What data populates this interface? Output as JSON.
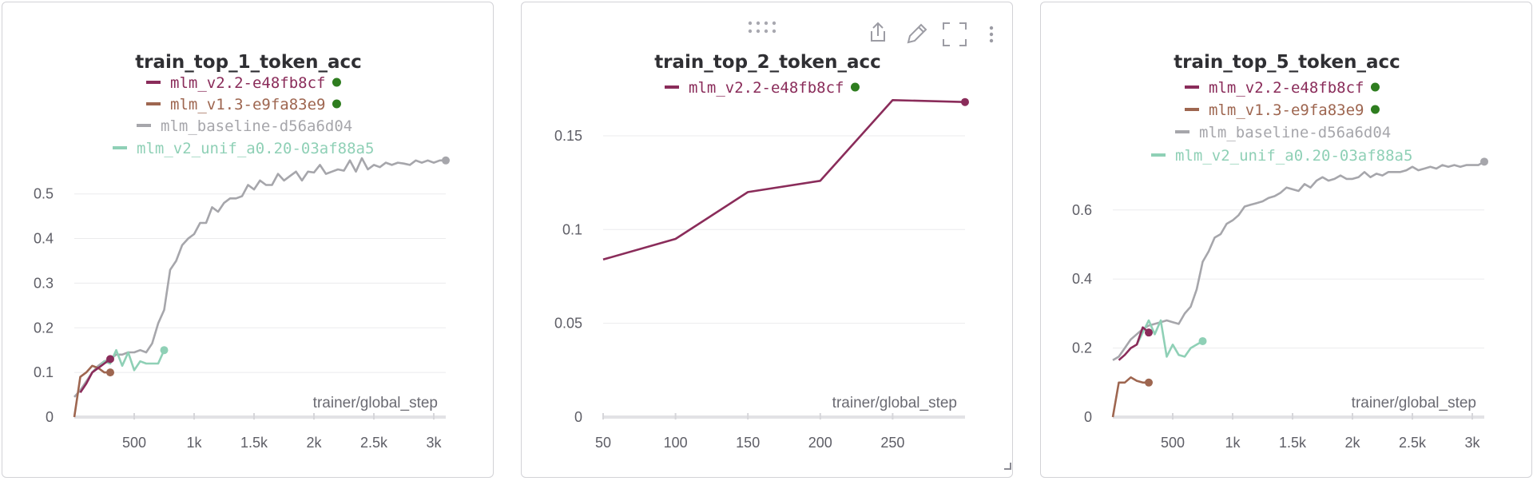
{
  "status_dot_color": "#2e7d1f",
  "toolbar": {
    "icons": [
      "drag-handle-icon",
      "share-icon",
      "edit-icon",
      "fullscreen-icon",
      "more-vert-icon"
    ]
  },
  "chart_data": [
    {
      "type": "line",
      "title": "train_top_1_token_acc",
      "xlabel": "trainer/global_step",
      "ylabel": "",
      "xlim": [
        0,
        3100
      ],
      "ylim": [
        0,
        0.58
      ],
      "x_ticks": [
        {
          "v": 500,
          "label": "500"
        },
        {
          "v": 1000,
          "label": "1k"
        },
        {
          "v": 1500,
          "label": "1.5k"
        },
        {
          "v": 2000,
          "label": "2k"
        },
        {
          "v": 2500,
          "label": "2.5k"
        },
        {
          "v": 3000,
          "label": "3k"
        }
      ],
      "y_ticks": [
        {
          "v": 0,
          "label": "0"
        },
        {
          "v": 0.1,
          "label": "0.1"
        },
        {
          "v": 0.2,
          "label": "0.2"
        },
        {
          "v": 0.3,
          "label": "0.3"
        },
        {
          "v": 0.4,
          "label": "0.4"
        },
        {
          "v": 0.5,
          "label": "0.5"
        }
      ],
      "grid": true,
      "series": [
        {
          "name": "mlm_baseline-d56a6d04",
          "color": "#a6a6ab",
          "status_dot": false,
          "x": [
            0,
            50,
            100,
            150,
            200,
            250,
            300,
            350,
            400,
            450,
            500,
            550,
            600,
            650,
            700,
            750,
            800,
            850,
            900,
            950,
            1000,
            1050,
            1100,
            1150,
            1200,
            1250,
            1300,
            1350,
            1400,
            1450,
            1500,
            1550,
            1600,
            1650,
            1700,
            1750,
            1800,
            1850,
            1900,
            1950,
            2000,
            2050,
            2100,
            2150,
            2200,
            2250,
            2300,
            2350,
            2400,
            2450,
            2500,
            2550,
            2600,
            2650,
            2700,
            2750,
            2800,
            2850,
            2900,
            2950,
            3000,
            3050,
            3100
          ],
          "y": [
            0.045,
            0.06,
            0.08,
            0.1,
            0.115,
            0.125,
            0.13,
            0.14,
            0.14,
            0.145,
            0.145,
            0.15,
            0.145,
            0.165,
            0.21,
            0.24,
            0.33,
            0.35,
            0.385,
            0.4,
            0.41,
            0.435,
            0.435,
            0.47,
            0.46,
            0.48,
            0.49,
            0.49,
            0.495,
            0.52,
            0.51,
            0.53,
            0.52,
            0.52,
            0.545,
            0.53,
            0.54,
            0.55,
            0.53,
            0.55,
            0.548,
            0.565,
            0.545,
            0.55,
            0.555,
            0.552,
            0.575,
            0.55,
            0.58,
            0.555,
            0.565,
            0.56,
            0.57,
            0.565,
            0.57,
            0.568,
            0.565,
            0.575,
            0.57,
            0.575,
            0.57,
            0.575,
            0.575
          ],
          "end_marker": true
        },
        {
          "name": "mlm_v2_unif_a0.20-03af88a5",
          "color": "#8fd0b6",
          "status_dot": false,
          "x": [
            200,
            250,
            300,
            350,
            400,
            450,
            500,
            550,
            600,
            650,
            700,
            750
          ],
          "y": [
            0.11,
            0.125,
            0.12,
            0.15,
            0.115,
            0.145,
            0.105,
            0.125,
            0.12,
            0.12,
            0.12,
            0.15
          ],
          "end_marker": true
        },
        {
          "name": "mlm_v1.3-e9fa83e9",
          "color": "#9e6650",
          "status_dot": true,
          "x": [
            0,
            50,
            100,
            150,
            200,
            250,
            300
          ],
          "y": [
            0.0,
            0.09,
            0.1,
            0.115,
            0.11,
            0.1,
            0.1
          ],
          "end_marker": true
        },
        {
          "name": "mlm_v2.2-e48fb8cf",
          "color": "#8a2c5a",
          "status_dot": true,
          "x": [
            50,
            100,
            150,
            200,
            250,
            300
          ],
          "y": [
            0.055,
            0.075,
            0.1,
            0.11,
            0.12,
            0.13
          ],
          "end_marker": true
        }
      ]
    },
    {
      "type": "line",
      "title": "train_top_2_token_acc",
      "xlabel": "trainer/global_step",
      "ylabel": "",
      "xlim": [
        50,
        300
      ],
      "ylim": [
        0,
        0.17
      ],
      "x_ticks": [
        {
          "v": 50,
          "label": "50"
        },
        {
          "v": 100,
          "label": "100"
        },
        {
          "v": 150,
          "label": "150"
        },
        {
          "v": 200,
          "label": "200"
        },
        {
          "v": 250,
          "label": "250"
        }
      ],
      "y_ticks": [
        {
          "v": 0,
          "label": "0"
        },
        {
          "v": 0.05,
          "label": "0.05"
        },
        {
          "v": 0.1,
          "label": "0.1"
        },
        {
          "v": 0.15,
          "label": "0.15"
        }
      ],
      "grid": true,
      "series": [
        {
          "name": "mlm_v2.2-e48fb8cf",
          "color": "#8a2c5a",
          "status_dot": true,
          "x": [
            50,
            100,
            150,
            200,
            250,
            300
          ],
          "y": [
            0.084,
            0.095,
            0.12,
            0.126,
            0.169,
            0.168
          ],
          "end_marker": true
        }
      ]
    },
    {
      "type": "line",
      "title": "train_top_5_token_acc",
      "xlabel": "trainer/global_step",
      "ylabel": "",
      "xlim": [
        0,
        3100
      ],
      "ylim": [
        0,
        0.75
      ],
      "x_ticks": [
        {
          "v": 500,
          "label": "500"
        },
        {
          "v": 1000,
          "label": "1k"
        },
        {
          "v": 1500,
          "label": "1.5k"
        },
        {
          "v": 2000,
          "label": "2k"
        },
        {
          "v": 2500,
          "label": "2.5k"
        },
        {
          "v": 3000,
          "label": "3k"
        }
      ],
      "y_ticks": [
        {
          "v": 0,
          "label": "0"
        },
        {
          "v": 0.2,
          "label": "0.2"
        },
        {
          "v": 0.4,
          "label": "0.4"
        },
        {
          "v": 0.6,
          "label": "0.6"
        }
      ],
      "grid": true,
      "series": [
        {
          "name": "mlm_baseline-d56a6d04",
          "color": "#a6a6ab",
          "status_dot": false,
          "x": [
            0,
            50,
            100,
            150,
            200,
            250,
            300,
            350,
            400,
            450,
            500,
            550,
            600,
            650,
            700,
            750,
            800,
            850,
            900,
            950,
            1000,
            1050,
            1100,
            1150,
            1200,
            1250,
            1300,
            1350,
            1400,
            1450,
            1500,
            1550,
            1600,
            1650,
            1700,
            1750,
            1800,
            1850,
            1900,
            1950,
            2000,
            2050,
            2100,
            2150,
            2200,
            2250,
            2300,
            2350,
            2400,
            2450,
            2500,
            2550,
            2600,
            2650,
            2700,
            2750,
            2800,
            2850,
            2900,
            2950,
            3000,
            3050,
            3100
          ],
          "y": [
            0.165,
            0.175,
            0.2,
            0.225,
            0.24,
            0.255,
            0.265,
            0.27,
            0.275,
            0.28,
            0.275,
            0.27,
            0.3,
            0.32,
            0.37,
            0.45,
            0.48,
            0.52,
            0.53,
            0.56,
            0.57,
            0.585,
            0.61,
            0.615,
            0.62,
            0.625,
            0.635,
            0.64,
            0.65,
            0.665,
            0.66,
            0.655,
            0.675,
            0.665,
            0.685,
            0.695,
            0.685,
            0.69,
            0.7,
            0.69,
            0.69,
            0.695,
            0.71,
            0.695,
            0.705,
            0.7,
            0.71,
            0.71,
            0.71,
            0.715,
            0.725,
            0.715,
            0.72,
            0.725,
            0.72,
            0.73,
            0.725,
            0.73,
            0.725,
            0.73,
            0.73,
            0.73,
            0.74
          ],
          "end_marker": true
        },
        {
          "name": "mlm_v2_unif_a0.20-03af88a5",
          "color": "#8fd0b6",
          "status_dot": false,
          "x": [
            200,
            250,
            300,
            350,
            400,
            450,
            500,
            550,
            600,
            650,
            700,
            750
          ],
          "y": [
            0.21,
            0.245,
            0.28,
            0.24,
            0.28,
            0.175,
            0.21,
            0.18,
            0.175,
            0.2,
            0.21,
            0.22
          ],
          "end_marker": true
        },
        {
          "name": "mlm_v1.3-e9fa83e9",
          "color": "#9e6650",
          "status_dot": true,
          "x": [
            0,
            50,
            100,
            150,
            200,
            250,
            300
          ],
          "y": [
            0.0,
            0.1,
            0.1,
            0.115,
            0.105,
            0.1,
            0.1
          ],
          "end_marker": true
        },
        {
          "name": "mlm_v2.2-e48fb8cf",
          "color": "#8a2c5a",
          "status_dot": true,
          "x": [
            50,
            100,
            150,
            200,
            250,
            300
          ],
          "y": [
            0.165,
            0.18,
            0.2,
            0.21,
            0.26,
            0.245
          ],
          "end_marker": true
        }
      ]
    }
  ]
}
